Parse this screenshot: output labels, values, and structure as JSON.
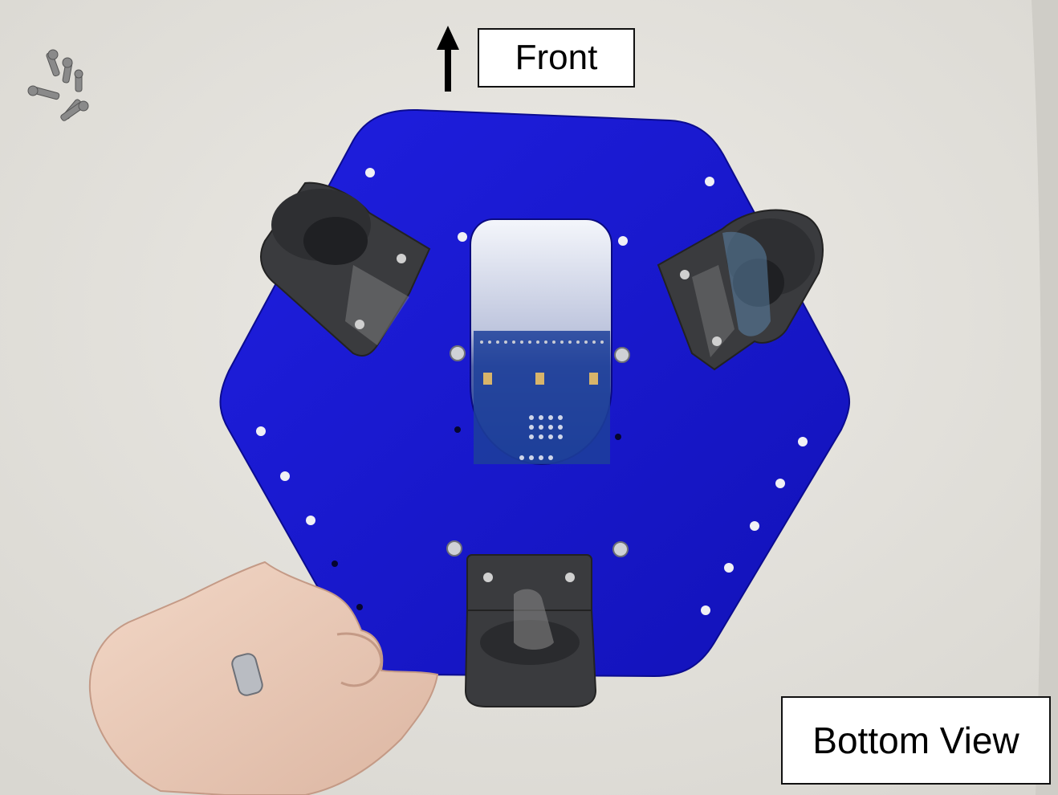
{
  "labels": {
    "direction": "Front",
    "view": "Bottom View"
  },
  "colors": {
    "plate": "#1a1ad6",
    "plate_edge": "#0e0ea8",
    "background": "#e6e4df",
    "mount": "#3a3b3e",
    "pcb": "#1d3f9a"
  },
  "icons": {
    "direction_arrow": "arrow-up-icon"
  }
}
